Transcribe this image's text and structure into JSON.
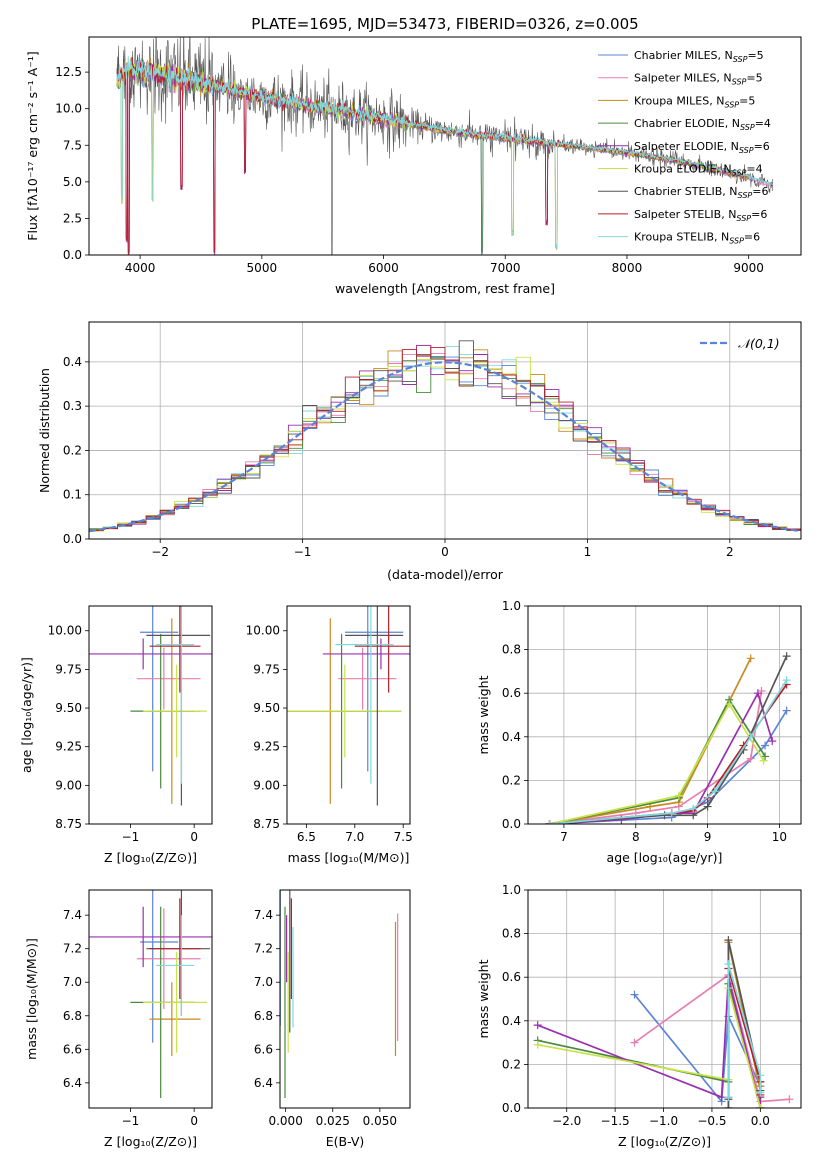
{
  "series_names": [
    "Chabrier MILES, N_SSP=5",
    "Salpeter MILES, N_SSP=5",
    "Kroupa MILES, N_SSP=5",
    "Chabrier ELODIE, N_SSP=4",
    "Salpeter ELODIE, N_SSP=6",
    "Kroupa ELODIE, N_SSP=4",
    "Chabrier STELIB, N_SSP=6",
    "Salpeter STELIB, N_SSP=6",
    "Kroupa STELIB, N_SSP=6"
  ],
  "legend_labels": [
    {
      "pre": "Chabrier MILES, N",
      "sub": "SSP",
      "post": "=5"
    },
    {
      "pre": "Salpeter MILES, N",
      "sub": "SSP",
      "post": "=5"
    },
    {
      "pre": "Kroupa MILES, N",
      "sub": "SSP",
      "post": "=5"
    },
    {
      "pre": "Chabrier ELODIE, N",
      "sub": "SSP",
      "post": "=4"
    },
    {
      "pre": "Salpeter ELODIE, N",
      "sub": "SSP",
      "post": "=6"
    },
    {
      "pre": "Kroupa ELODIE, N",
      "sub": "SSP",
      "post": "=4"
    },
    {
      "pre": "Chabrier STELIB, N",
      "sub": "SSP",
      "post": "=6"
    },
    {
      "pre": "Salpeter STELIB, N",
      "sub": "SSP",
      "post": "=6"
    },
    {
      "pre": "Kroupa STELIB, N",
      "sub": "SSP",
      "post": "=6"
    }
  ],
  "colors": [
    "#5b84d6",
    "#e67fb0",
    "#c88a1e",
    "#4a8a3e",
    "#9a2fb0",
    "#c8e34a",
    "#555555",
    "#b5202a",
    "#7fd8df"
  ],
  "chart_data": [
    {
      "id": "spectrum",
      "type": "line",
      "title": "PLATE=1695, MJD=53473, FIBERID=0326, z=0.005",
      "xlabel": "wavelength [Angstrom, rest frame]",
      "ylabel": "Flux [fλ10⁻¹⁷ erg cm⁻² s⁻¹ A⁻¹]",
      "xlim": [
        3580,
        9430
      ],
      "ylim": [
        0,
        14.9
      ],
      "xticks": [
        4000,
        5000,
        6000,
        7000,
        8000,
        9000
      ],
      "yticks": [
        0.0,
        2.5,
        5.0,
        7.5,
        10.0,
        12.5
      ],
      "xtick_labels": [
        "4000",
        "5000",
        "6000",
        "7000",
        "8000",
        "9000"
      ],
      "ytick_labels": [
        "0.0",
        "2.5",
        "5.0",
        "7.5",
        "10.0",
        "12.5"
      ],
      "continuum": [
        [
          3810,
          12.0
        ],
        [
          3900,
          12.6
        ],
        [
          4000,
          12.6
        ],
        [
          4200,
          12.3
        ],
        [
          4500,
          11.8
        ],
        [
          4800,
          11.2
        ],
        [
          5000,
          10.8
        ],
        [
          5400,
          10.2
        ],
        [
          6000,
          9.3
        ],
        [
          6500,
          8.5
        ],
        [
          7000,
          8.0
        ],
        [
          7500,
          7.5
        ],
        [
          8000,
          7.0
        ],
        [
          8500,
          6.3
        ],
        [
          9000,
          5.3
        ],
        [
          9200,
          4.7
        ]
      ],
      "absorption_dips": [
        [
          3850,
          3.5
        ],
        [
          3890,
          0.8
        ],
        [
          3905,
          0.0
        ],
        [
          4102,
          3.6
        ],
        [
          4340,
          4.4
        ],
        [
          4610,
          0.0
        ],
        [
          4862,
          5.5
        ],
        [
          6810,
          0.0
        ],
        [
          7060,
          1.3
        ],
        [
          7340,
          2.0
        ],
        [
          7420,
          0.4
        ]
      ],
      "observed_spike_at": 5577,
      "legend_loc": "upper right"
    },
    {
      "id": "residuals",
      "type": "histogram",
      "xlabel": "(data-model)/error",
      "ylabel": "Normed distribution",
      "xlim": [
        -2.5,
        2.5
      ],
      "ylim": [
        0,
        0.49
      ],
      "xticks": [
        -2,
        -1,
        0,
        1,
        2
      ],
      "yticks": [
        0.0,
        0.1,
        0.2,
        0.3,
        0.4
      ],
      "xtick_labels": [
        "−2",
        "−1",
        "0",
        "1",
        "2"
      ],
      "ytick_labels": [
        "0.0",
        "0.1",
        "0.2",
        "0.3",
        "0.4"
      ],
      "bin_width": 0.1,
      "reference": {
        "name": "𝒩(0,1)",
        "color": "#5b84d6"
      },
      "legend_loc": "upper right"
    },
    {
      "id": "age_vs_Z",
      "type": "errorbar",
      "xlabel": "Z [log₁₀(Z/Z⊙)]",
      "ylabel": "age  [log₁₀(age/yr)]",
      "xlim": [
        -1.65,
        0.28
      ],
      "ylim": [
        8.75,
        10.16
      ],
      "xticks": [
        -1,
        0
      ],
      "yticks": [
        8.75,
        9.0,
        9.25,
        9.5,
        9.75,
        10.0
      ],
      "xtick_labels": [
        "−1",
        "0"
      ],
      "ytick_labels": [
        "8.75",
        "9.00",
        "9.25",
        "9.50",
        "9.75",
        "10.00"
      ],
      "points": [
        [
          -0.55,
          9.99,
          0.3,
          0.9
        ],
        [
          -0.4,
          9.69,
          0.5,
          0.2
        ],
        [
          -0.3,
          9.48,
          0.4,
          0.6
        ],
        [
          -0.5,
          9.48,
          0.5,
          0.5
        ],
        [
          -0.8,
          9.85,
          1.5,
          0.1
        ],
        [
          -0.3,
          9.48,
          0.5,
          0.3
        ],
        [
          -0.25,
          9.97,
          0.5,
          1.1
        ],
        [
          -0.3,
          9.9,
          0.4,
          0.3
        ],
        [
          -0.3,
          9.91,
          0.3,
          0.9
        ]
      ]
    },
    {
      "id": "age_vs_mass",
      "type": "errorbar",
      "xlabel": "mass [log₁₀(M/M⊙)]",
      "xlim": [
        6.3,
        7.57
      ],
      "ylim": [
        8.75,
        10.16
      ],
      "xticks": [
        6.5,
        7.0,
        7.5
      ],
      "yticks": [
        8.75,
        9.0,
        9.25,
        9.5,
        9.75,
        10.0
      ],
      "xtick_labels": [
        "6.5",
        "7.0",
        "7.5"
      ],
      "ytick_labels": [
        "8.75",
        "9.00",
        "9.25",
        "9.50",
        "9.75",
        "10.00"
      ],
      "points": [
        [
          7.2,
          9.99,
          0.3,
          0.9
        ],
        [
          7.13,
          9.69,
          0.3,
          0.2
        ],
        [
          6.78,
          9.48,
          0.5,
          0.6
        ],
        [
          6.88,
          9.48,
          0.6,
          0.5
        ],
        [
          7.27,
          9.85,
          0.6,
          0.1
        ],
        [
          6.88,
          9.48,
          0.6,
          0.3
        ],
        [
          7.2,
          9.97,
          0.3,
          1.1
        ],
        [
          7.3,
          9.9,
          0.3,
          0.3
        ],
        [
          7.1,
          9.91,
          0.3,
          0.9
        ]
      ]
    },
    {
      "id": "mass_weight_vs_age",
      "type": "line",
      "xlabel": "age  [log₁₀(age/yr)]",
      "ylabel": "mass weight",
      "xlim": [
        6.5,
        10.3
      ],
      "ylim": [
        0,
        1.0
      ],
      "xticks": [
        7,
        8,
        9,
        10
      ],
      "yticks": [
        0.0,
        0.2,
        0.4,
        0.6,
        0.8,
        1.0
      ],
      "xtick_labels": [
        "7",
        "8",
        "9",
        "10"
      ],
      "ytick_labels": [
        "0.0",
        "0.2",
        "0.4",
        "0.6",
        "0.8",
        "1.0"
      ],
      "series": [
        {
          "x": [
            6.8,
            8.5,
            9.0,
            9.8,
            10.1
          ],
          "y": [
            0.0,
            0.03,
            0.1,
            0.36,
            0.52
          ]
        },
        {
          "x": [
            6.8,
            8.0,
            8.6,
            9.6,
            9.75
          ],
          "y": [
            0.0,
            0.05,
            0.08,
            0.3,
            0.61
          ]
        },
        {
          "x": [
            6.8,
            8.2,
            8.6,
            9.6
          ],
          "y": [
            0.0,
            0.08,
            0.1,
            0.76
          ]
        },
        {
          "x": [
            6.8,
            8.6,
            9.3,
            9.8
          ],
          "y": [
            0.0,
            0.12,
            0.57,
            0.31
          ]
        },
        {
          "x": [
            6.8,
            7.8,
            8.5,
            8.8,
            9.7,
            9.9
          ],
          "y": [
            0.0,
            0.02,
            0.05,
            0.05,
            0.6,
            0.38
          ]
        },
        {
          "x": [
            6.8,
            8.6,
            9.3,
            9.78
          ],
          "y": [
            0.0,
            0.13,
            0.55,
            0.29
          ]
        },
        {
          "x": [
            6.8,
            8.4,
            8.8,
            9.0,
            9.5,
            10.1
          ],
          "y": [
            0.0,
            0.04,
            0.04,
            0.08,
            0.34,
            0.77
          ]
        },
        {
          "x": [
            6.8,
            8.5,
            8.8,
            9.0,
            9.5,
            10.1
          ],
          "y": [
            0.0,
            0.05,
            0.06,
            0.12,
            0.36,
            0.64
          ]
        },
        {
          "x": [
            6.8,
            8.5,
            8.8,
            9.1,
            9.6,
            10.1
          ],
          "y": [
            0.0,
            0.05,
            0.07,
            0.15,
            0.4,
            0.66
          ]
        }
      ]
    },
    {
      "id": "mass_vs_Z",
      "type": "errorbar",
      "xlabel": "Z [log₁₀(Z/Z⊙)]",
      "ylabel": "mass [log₁₀(M/M⊙)]",
      "xlim": [
        -1.65,
        0.28
      ],
      "ylim": [
        6.25,
        7.55
      ],
      "xticks": [
        -1,
        0
      ],
      "yticks": [
        6.4,
        6.6,
        6.8,
        7.0,
        7.2,
        7.4
      ],
      "xtick_labels": [
        "−1",
        "0"
      ],
      "ytick_labels": [
        "6.4",
        "6.6",
        "6.8",
        "7.0",
        "7.2",
        "7.4"
      ],
      "points": [
        [
          -0.55,
          7.24,
          0.3,
          0.6
        ],
        [
          -0.4,
          7.14,
          0.5,
          0.3
        ],
        [
          -0.3,
          6.78,
          0.4,
          0.22
        ],
        [
          -0.5,
          6.88,
          0.5,
          0.57
        ],
        [
          -0.8,
          7.27,
          1.5,
          0.18
        ],
        [
          -0.3,
          6.88,
          0.5,
          0.3
        ],
        [
          -0.25,
          7.2,
          0.5,
          0.4
        ],
        [
          -0.3,
          7.2,
          0.4,
          0.3
        ],
        [
          -0.3,
          7.1,
          0.3,
          0.3
        ]
      ]
    },
    {
      "id": "mass_vs_EBV",
      "type": "errorbar",
      "xlabel": "E(B-V)",
      "xlim": [
        -0.003,
        0.066
      ],
      "ylim": [
        6.25,
        7.55
      ],
      "xticks": [
        0.0,
        0.025,
        0.05
      ],
      "yticks": [
        6.4,
        6.6,
        6.8,
        7.0,
        7.2,
        7.4
      ],
      "xtick_labels": [
        "0.000",
        "0.025",
        "0.050"
      ],
      "ytick_labels": [
        "6.4",
        "6.6",
        "6.8",
        "7.0",
        "7.2",
        "7.4"
      ],
      "points": [
        [
          0.0005,
          7.24,
          0,
          0.5
        ],
        [
          0.062,
          7.03,
          0,
          0.38
        ],
        [
          0.06,
          6.96,
          0,
          0.4
        ],
        [
          0.0005,
          6.88,
          0,
          0.57
        ],
        [
          0.0005,
          7.2,
          0,
          0.2
        ],
        [
          0.0005,
          6.88,
          0,
          0.3
        ],
        [
          0.0005,
          7.2,
          0,
          0.5
        ],
        [
          0.0005,
          7.2,
          0,
          0.3
        ],
        [
          0.0005,
          7.03,
          0,
          0.3
        ]
      ]
    },
    {
      "id": "mass_weight_vs_Z",
      "type": "line",
      "xlabel": "Z [log₁₀(Z/Z⊙)]",
      "ylabel": "mass weight",
      "xlim": [
        -2.4,
        0.42
      ],
      "ylim": [
        0,
        1.0
      ],
      "xticks": [
        -2.0,
        -1.5,
        -1.0,
        -0.5,
        0.0
      ],
      "yticks": [
        0.0,
        0.2,
        0.4,
        0.6,
        0.8,
        1.0
      ],
      "xtick_labels": [
        "−2.0",
        "−1.5",
        "−1.0",
        "−0.5",
        "0.0"
      ],
      "ytick_labels": [
        "0.0",
        "0.2",
        "0.4",
        "0.6",
        "0.8",
        "1.0"
      ],
      "series": [
        {
          "x": [
            -1.3,
            -0.4,
            -0.33,
            0.0,
            0.0
          ],
          "y": [
            0.52,
            0.03,
            0.42,
            0.1,
            0.0
          ]
        },
        {
          "x": [
            -1.3,
            -0.33,
            0.0,
            0.3
          ],
          "y": [
            0.3,
            0.61,
            0.03,
            0.04
          ]
        },
        {
          "x": [
            -0.33,
            -0.33,
            0.0,
            0.0
          ],
          "y": [
            0.0,
            0.76,
            0.08,
            0.1
          ]
        },
        {
          "x": [
            -2.3,
            -0.33,
            -0.33,
            0.0
          ],
          "y": [
            0.31,
            0.12,
            0.57,
            0.0
          ]
        },
        {
          "x": [
            -2.3,
            -0.4,
            -0.33,
            0.0,
            0.0
          ],
          "y": [
            0.38,
            0.05,
            0.6,
            0.0,
            0.05
          ]
        },
        {
          "x": [
            -2.3,
            -0.33,
            -0.33,
            0.0
          ],
          "y": [
            0.29,
            0.13,
            0.55,
            0.0
          ]
        },
        {
          "x": [
            -0.33,
            -0.33,
            -0.33,
            0.0,
            0.0
          ],
          "y": [
            0.0,
            0.04,
            0.77,
            0.12,
            0.08
          ]
        },
        {
          "x": [
            -0.33,
            -0.33,
            0.0,
            0.0
          ],
          "y": [
            0.05,
            0.64,
            0.12,
            0.06
          ]
        },
        {
          "x": [
            -0.33,
            -0.33,
            0.0,
            0.0
          ],
          "y": [
            0.05,
            0.66,
            0.15,
            0.07
          ]
        }
      ]
    }
  ]
}
